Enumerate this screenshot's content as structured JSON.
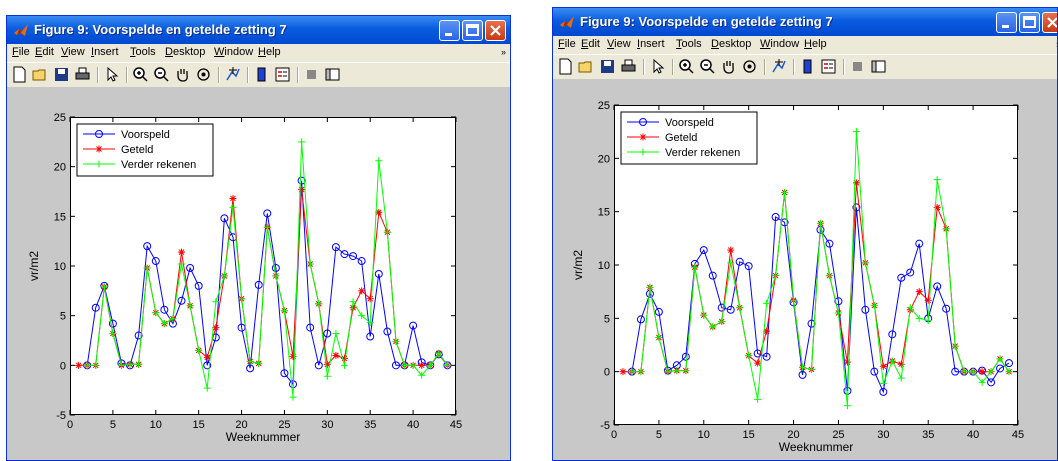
{
  "windows": [
    {
      "title": "Figure 9: Voorspelde en getelde zetting 7",
      "menu": [
        "File",
        "Edit",
        "View",
        "Insert",
        "Tools",
        "Desktop",
        "Window",
        "Help"
      ],
      "menu_arrow": "»",
      "chart_data": {
        "type": "line",
        "xlabel": "Weeknummer",
        "ylabel": "vr/m2",
        "xlim": [
          0,
          45
        ],
        "ylim": [
          -5,
          25
        ],
        "xticks": [
          0,
          5,
          10,
          15,
          20,
          25,
          30,
          35,
          40,
          45
        ],
        "yticks": [
          -5,
          0,
          5,
          10,
          15,
          20,
          25
        ],
        "legend": [
          "Voorspeld",
          "Geteld",
          "Verder rekenen"
        ],
        "legend_position": "top-left",
        "grid": false,
        "series": [
          {
            "name": "Voorspeld",
            "color": "#0000ff",
            "marker": "o",
            "x": [
              2,
              3,
              4,
              5,
              6,
              7,
              8,
              9,
              10,
              11,
              12,
              13,
              14,
              15,
              16,
              17,
              18,
              19,
              20,
              21,
              22,
              23,
              24,
              25,
              26,
              27,
              28,
              29,
              30,
              31,
              32,
              33,
              34,
              35,
              36,
              37,
              38,
              39,
              40,
              41,
              42,
              43,
              44
            ],
            "y": [
              0,
              5.8,
              8,
              4.2,
              0.2,
              0,
              3,
              12,
              10.5,
              5.6,
              4.2,
              6.5,
              9.8,
              8,
              0,
              2.8,
              14.8,
              12.9,
              3.8,
              -0.3,
              8.1,
              15.3,
              9.8,
              -0.8,
              -1.9,
              18.6,
              3.8,
              0,
              3.2,
              11.9,
              11.2,
              11,
              10.5,
              2.9,
              9.2,
              3.4,
              0,
              0,
              4,
              0.3,
              0,
              1.1,
              0
            ]
          },
          {
            "name": "Geteld",
            "color": "#ff0000",
            "marker": "*",
            "x": [
              1,
              2,
              3,
              4,
              5,
              6,
              7,
              8,
              9,
              10,
              11,
              12,
              13,
              14,
              15,
              16,
              17,
              18,
              19,
              20,
              21,
              22,
              23,
              24,
              25,
              26,
              27,
              28,
              29,
              30,
              31,
              32,
              33,
              34,
              35,
              36,
              37,
              38,
              39,
              40,
              41,
              42,
              43,
              44
            ],
            "y": [
              0,
              0,
              0,
              7.9,
              3.2,
              0,
              0.1,
              0.1,
              9.8,
              5.3,
              4.2,
              4.7,
              11.4,
              6,
              1.5,
              0.8,
              3.8,
              9,
              16.8,
              6.7,
              0.4,
              0.2,
              13.9,
              9,
              5.5,
              0.9,
              17.7,
              10.2,
              6.2,
              0.1,
              1,
              0.7,
              5.8,
              7.5,
              6.7,
              15.4,
              13.4,
              2.4,
              0,
              0,
              0,
              0,
              1.2,
              0
            ]
          },
          {
            "name": "Verder rekenen",
            "color": "#00ff00",
            "marker": "+",
            "x": [
              2,
              3,
              4,
              5,
              6,
              7,
              8,
              9,
              10,
              11,
              12,
              13,
              14,
              15,
              16,
              17,
              18,
              19,
              20,
              21,
              22,
              23,
              24,
              25,
              26,
              27,
              28,
              29,
              30,
              31,
              32,
              33,
              34,
              35,
              36,
              37,
              38,
              39,
              40,
              41,
              42,
              43,
              44
            ],
            "y": [
              0,
              0,
              7.9,
              3.2,
              0,
              0.1,
              0.1,
              9.8,
              5.3,
              4.2,
              4.7,
              10.2,
              6,
              1.5,
              -2.3,
              6.4,
              9,
              15.9,
              6.7,
              0.4,
              0.2,
              13.9,
              9,
              5.5,
              -3.2,
              22.5,
              10.2,
              6.2,
              -1.1,
              3.2,
              0,
              6.4,
              5,
              4.3,
              20.6,
              13.4,
              2.4,
              0,
              0,
              -1,
              0,
              1.2,
              0
            ]
          }
        ]
      }
    },
    {
      "title": "Figure 9: Voorspelde en getelde zetting 7",
      "menu": [
        "File",
        "Edit",
        "View",
        "Insert",
        "Tools",
        "Desktop",
        "Window",
        "Help"
      ],
      "menu_arrow": "»",
      "chart_data": {
        "type": "line",
        "xlabel": "Weeknummer",
        "ylabel": "vr/m2",
        "xlim": [
          0,
          45
        ],
        "ylim": [
          -5,
          25
        ],
        "xticks": [
          0,
          5,
          10,
          15,
          20,
          25,
          30,
          35,
          40,
          45
        ],
        "yticks": [
          -5,
          0,
          5,
          10,
          15,
          20,
          25
        ],
        "legend": [
          "Voorspeld",
          "Geteld",
          "Verder rekenen"
        ],
        "legend_position": "top-left",
        "grid": false,
        "series": [
          {
            "name": "Voorspeld",
            "color": "#0000ff",
            "marker": "o",
            "x": [
              2,
              3,
              4,
              5,
              6,
              7,
              8,
              9,
              10,
              11,
              12,
              13,
              14,
              15,
              16,
              17,
              18,
              19,
              20,
              21,
              22,
              23,
              24,
              25,
              26,
              27,
              28,
              29,
              30,
              31,
              32,
              33,
              34,
              35,
              36,
              37,
              38,
              39,
              40,
              41,
              42,
              43,
              44
            ],
            "y": [
              0,
              4.9,
              7.3,
              5.6,
              0.1,
              0.6,
              1.4,
              10.1,
              11.4,
              9,
              6,
              5.8,
              10.3,
              9.9,
              1.7,
              1.4,
              14.5,
              14,
              6.5,
              -0.3,
              4.5,
              13.3,
              12,
              6.6,
              -1.8,
              15.4,
              5.8,
              0,
              -1.9,
              3.5,
              8.8,
              9.3,
              12,
              5,
              8,
              5.9,
              0,
              0,
              0,
              0.1,
              -1,
              0.3,
              0.8
            ]
          },
          {
            "name": "Geteld",
            "color": "#ff0000",
            "marker": "*",
            "x": [
              1,
              2,
              3,
              4,
              5,
              6,
              7,
              8,
              9,
              10,
              11,
              12,
              13,
              14,
              15,
              16,
              17,
              18,
              19,
              20,
              21,
              22,
              23,
              24,
              25,
              26,
              27,
              28,
              29,
              30,
              31,
              32,
              33,
              34,
              35,
              36,
              37,
              38,
              39,
              40,
              41,
              42,
              43,
              44
            ],
            "y": [
              0,
              0,
              0,
              7.9,
              3.2,
              0,
              0.1,
              0.1,
              9.8,
              5.3,
              4.2,
              4.7,
              11.4,
              6,
              1.5,
              0.8,
              3.8,
              9,
              16.8,
              6.7,
              0.4,
              0.2,
              13.9,
              9,
              5.5,
              0.9,
              17.7,
              10.2,
              6.2,
              0.5,
              1,
              0.7,
              5.8,
              7.5,
              6.7,
              15.4,
              13.4,
              2.4,
              0,
              0,
              0,
              0,
              1.2,
              0
            ]
          },
          {
            "name": "Verder rekenen",
            "color": "#00ff00",
            "marker": "+",
            "x": [
              2,
              3,
              4,
              5,
              6,
              7,
              8,
              9,
              10,
              11,
              12,
              13,
              14,
              15,
              16,
              17,
              18,
              19,
              20,
              21,
              22,
              23,
              24,
              25,
              26,
              27,
              28,
              29,
              30,
              31,
              32,
              33,
              34,
              35,
              36,
              37,
              38,
              39,
              40,
              41,
              42,
              43,
              44
            ],
            "y": [
              0,
              0,
              7.9,
              3.2,
              0,
              0.1,
              0.1,
              9.8,
              5.3,
              4.2,
              4.7,
              10.2,
              6,
              1.5,
              -2.6,
              6.4,
              9,
              16.8,
              6.7,
              0.4,
              0.2,
              13.9,
              9,
              5.5,
              -3.2,
              22.5,
              10.2,
              6.2,
              -1.1,
              1,
              -0.6,
              6,
              5,
              4.8,
              18,
              13.4,
              2.4,
              0,
              0,
              -1,
              0,
              1.2,
              0
            ]
          }
        ]
      }
    }
  ]
}
